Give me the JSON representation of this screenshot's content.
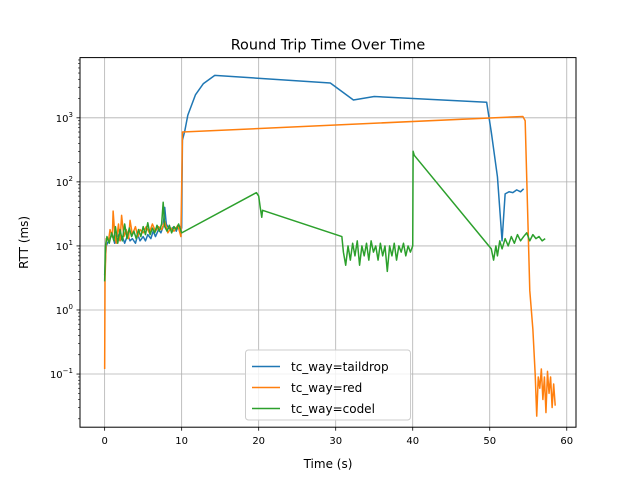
{
  "chart_data": {
    "type": "line",
    "title": "Round Trip Time Over Time",
    "xlabel": "Time (s)",
    "ylabel": "RTT (ms)",
    "xlim": [
      -3.2,
      61.2
    ],
    "ylim_log10": [
      -1.83,
      3.94
    ],
    "yscale": "log",
    "grid": true,
    "legend_position": "lower-center",
    "x_ticks": [
      {
        "value": 0,
        "label": "0"
      },
      {
        "value": 10,
        "label": "10"
      },
      {
        "value": 20,
        "label": "20"
      },
      {
        "value": 30,
        "label": "30"
      },
      {
        "value": 40,
        "label": "40"
      },
      {
        "value": 50,
        "label": "50"
      },
      {
        "value": 60,
        "label": "60"
      }
    ],
    "y_ticks": [
      {
        "exp": -1,
        "base": "10",
        "sup": "−1"
      },
      {
        "exp": 0,
        "base": "10",
        "sup": "0"
      },
      {
        "exp": 1,
        "base": "10",
        "sup": "1"
      },
      {
        "exp": 2,
        "base": "10",
        "sup": "2"
      },
      {
        "exp": 3,
        "base": "10",
        "sup": "3"
      }
    ],
    "series": [
      {
        "name": "tc_way=taildrop",
        "color": "#1f77b4",
        "points": [
          [
            0.0,
            3.5
          ],
          [
            0.2,
            10
          ],
          [
            0.5,
            12
          ],
          [
            1.0,
            15
          ],
          [
            1.3,
            11
          ],
          [
            1.6,
            16
          ],
          [
            2.0,
            12
          ],
          [
            2.3,
            14
          ],
          [
            2.6,
            11
          ],
          [
            3.0,
            15
          ],
          [
            3.3,
            12
          ],
          [
            3.6,
            13
          ],
          [
            4.0,
            11
          ],
          [
            4.3,
            15
          ],
          [
            4.6,
            12
          ],
          [
            5.0,
            14
          ],
          [
            5.3,
            12
          ],
          [
            5.6,
            15
          ],
          [
            6.0,
            13
          ],
          [
            6.3,
            17
          ],
          [
            6.6,
            14
          ],
          [
            7.0,
            18
          ],
          [
            7.3,
            16
          ],
          [
            7.6,
            20
          ],
          [
            7.8,
            40
          ],
          [
            8.0,
            22
          ],
          [
            8.3,
            19
          ],
          [
            8.6,
            18
          ],
          [
            9.0,
            20
          ],
          [
            9.3,
            17
          ],
          [
            9.6,
            21
          ],
          [
            10.0,
            19
          ],
          [
            10.1,
            450
          ],
          [
            10.4,
            620
          ],
          [
            10.8,
            1100
          ],
          [
            11.8,
            2300
          ],
          [
            12.8,
            3400
          ],
          [
            14.3,
            4600
          ],
          [
            29.3,
            3500
          ],
          [
            32.3,
            1900
          ],
          [
            35.0,
            2150
          ],
          [
            49.6,
            1750
          ],
          [
            50.2,
            600
          ],
          [
            51.0,
            120
          ],
          [
            51.6,
            12
          ],
          [
            52.0,
            65
          ],
          [
            52.5,
            70
          ],
          [
            53.0,
            68
          ],
          [
            53.5,
            75
          ],
          [
            54.0,
            70
          ],
          [
            54.4,
            78
          ]
        ]
      },
      {
        "name": "tc_way=red",
        "color": "#ff7f0e",
        "points": [
          [
            0.0,
            0.12
          ],
          [
            0.05,
            3
          ],
          [
            0.2,
            13
          ],
          [
            0.5,
            12
          ],
          [
            0.7,
            18
          ],
          [
            1.0,
            14
          ],
          [
            1.1,
            35
          ],
          [
            1.3,
            16
          ],
          [
            1.5,
            11
          ],
          [
            1.8,
            22
          ],
          [
            2.0,
            12
          ],
          [
            2.2,
            30
          ],
          [
            2.5,
            14
          ],
          [
            2.8,
            18
          ],
          [
            3.1,
            13
          ],
          [
            3.3,
            25
          ],
          [
            3.6,
            15
          ],
          [
            4.0,
            20
          ],
          [
            4.3,
            14
          ],
          [
            4.6,
            18
          ],
          [
            5.0,
            16
          ],
          [
            5.4,
            20
          ],
          [
            5.8,
            16
          ],
          [
            6.2,
            22
          ],
          [
            6.6,
            17
          ],
          [
            7.0,
            20
          ],
          [
            7.4,
            18
          ],
          [
            7.8,
            24
          ],
          [
            8.2,
            16
          ],
          [
            8.6,
            19
          ],
          [
            9.0,
            17
          ],
          [
            9.5,
            21
          ],
          [
            9.9,
            14
          ],
          [
            10.05,
            200
          ],
          [
            10.1,
            600
          ],
          [
            54.3,
            1050
          ],
          [
            54.6,
            900
          ],
          [
            55.2,
            2
          ],
          [
            55.6,
            0.5
          ],
          [
            55.9,
            0.1
          ],
          [
            56.1,
            0.022
          ],
          [
            56.3,
            0.09
          ],
          [
            56.5,
            0.06
          ],
          [
            56.7,
            0.12
          ],
          [
            56.9,
            0.04
          ],
          [
            57.1,
            0.09
          ],
          [
            57.3,
            0.025
          ],
          [
            57.5,
            0.11
          ],
          [
            57.7,
            0.05
          ],
          [
            57.9,
            0.09
          ],
          [
            58.1,
            0.03
          ],
          [
            58.3,
            0.07
          ],
          [
            58.5,
            0.032
          ]
        ]
      },
      {
        "name": "tc_way=codel",
        "color": "#2ca02c",
        "points": [
          [
            0.0,
            2.8
          ],
          [
            0.1,
            10
          ],
          [
            0.3,
            14
          ],
          [
            0.6,
            11
          ],
          [
            0.9,
            16
          ],
          [
            1.2,
            12
          ],
          [
            1.4,
            20
          ],
          [
            1.7,
            11
          ],
          [
            2.0,
            18
          ],
          [
            2.3,
            12
          ],
          [
            2.6,
            22
          ],
          [
            2.9,
            13
          ],
          [
            3.2,
            19
          ],
          [
            3.5,
            14
          ],
          [
            3.8,
            17
          ],
          [
            4.1,
            13
          ],
          [
            4.4,
            18
          ],
          [
            4.7,
            14
          ],
          [
            5.0,
            20
          ],
          [
            5.3,
            15
          ],
          [
            5.6,
            23
          ],
          [
            5.9,
            15
          ],
          [
            6.2,
            19
          ],
          [
            6.5,
            16
          ],
          [
            6.8,
            21
          ],
          [
            7.1,
            17
          ],
          [
            7.4,
            22
          ],
          [
            7.6,
            48
          ],
          [
            7.8,
            20
          ],
          [
            8.1,
            17
          ],
          [
            8.4,
            21
          ],
          [
            8.7,
            16
          ],
          [
            9.0,
            20
          ],
          [
            9.3,
            18
          ],
          [
            9.6,
            22
          ],
          [
            10.0,
            16
          ],
          [
            19.7,
            68
          ],
          [
            20.0,
            60
          ],
          [
            20.2,
            40
          ],
          [
            20.4,
            28
          ],
          [
            20.5,
            36
          ],
          [
            30.8,
            14
          ],
          [
            31.0,
            8
          ],
          [
            31.3,
            5
          ],
          [
            31.6,
            10
          ],
          [
            31.9,
            6
          ],
          [
            32.2,
            11
          ],
          [
            32.5,
            7
          ],
          [
            32.8,
            12
          ],
          [
            33.1,
            5
          ],
          [
            33.4,
            10
          ],
          [
            33.7,
            7
          ],
          [
            34.0,
            11
          ],
          [
            34.3,
            6
          ],
          [
            34.6,
            12
          ],
          [
            34.9,
            8
          ],
          [
            35.2,
            10
          ],
          [
            35.5,
            6
          ],
          [
            35.8,
            11
          ],
          [
            36.1,
            7
          ],
          [
            36.4,
            10
          ],
          [
            36.7,
            4
          ],
          [
            37.0,
            10
          ],
          [
            37.3,
            7
          ],
          [
            37.6,
            11
          ],
          [
            37.9,
            6
          ],
          [
            38.2,
            10
          ],
          [
            38.5,
            8
          ],
          [
            38.8,
            11
          ],
          [
            39.1,
            7
          ],
          [
            39.4,
            10
          ],
          [
            39.7,
            8
          ],
          [
            40.0,
            10
          ],
          [
            40.05,
            300
          ],
          [
            40.2,
            260
          ],
          [
            50.2,
            9
          ],
          [
            50.5,
            6
          ],
          [
            50.8,
            10
          ],
          [
            51.0,
            7
          ],
          [
            51.3,
            12
          ],
          [
            51.6,
            9
          ],
          [
            52.0,
            13
          ],
          [
            52.4,
            10
          ],
          [
            52.8,
            14
          ],
          [
            53.2,
            11
          ],
          [
            53.6,
            15
          ],
          [
            54.0,
            12
          ],
          [
            54.4,
            14
          ],
          [
            54.8,
            16
          ],
          [
            55.2,
            12
          ],
          [
            55.6,
            15
          ],
          [
            56.0,
            13
          ],
          [
            56.4,
            14
          ],
          [
            56.8,
            12
          ],
          [
            57.2,
            13
          ]
        ]
      }
    ]
  }
}
